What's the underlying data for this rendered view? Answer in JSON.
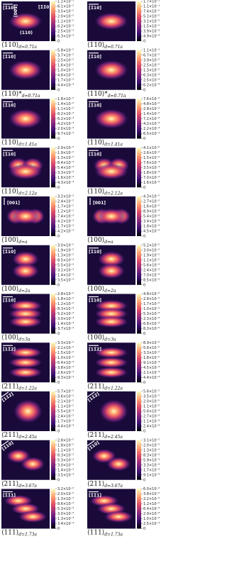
{
  "panels": [
    {
      "direction": "[1̄10]",
      "extra_labels": [
        "[001]",
        "[1̄1̄0]",
        "(110)"
      ],
      "caption": "⟨110⟩",
      "subscript": "d=0.71a",
      "ticks": [
        "1.1×10⁻¹",
        "6.1×10⁻²",
        "3.5×10⁻²",
        "2.0×10⁻²",
        "1.1×10⁻²",
        "6.2×10⁻³",
        "2.5×10⁻³",
        "6.3×10⁻⁴",
        "0"
      ]
    },
    {
      "direction": "[1̄10]",
      "caption": "⟨110⟩",
      "subscript": "d=0.71a",
      "ticks": [
        "1.7×10⁻¹",
        "1.1×10⁻¹",
        "7.4×10⁻²",
        "5.1×10⁻²",
        "3.1×10⁻²",
        "1.5×10⁻²",
        "3.9×10⁻³",
        "4.9×10⁻⁴",
        "0"
      ]
    },
    {
      "direction": "[1̄10]",
      "caption": "⟨110⟩*",
      "subscript": "d=0.71a",
      "ticks": [
        "5.8×10⁻²",
        "3.7×10⁻²",
        "2.5×10⁻²",
        "1.6×10⁻²",
        "1.0×10⁻²",
        "4.6×10⁻³",
        "1.7×10⁻³",
        "4.4×10⁻⁴",
        "0"
      ]
    },
    {
      "direction": "[1̄10]",
      "caption": "⟨110⟩*",
      "subscript": "d=0.71a",
      "ticks": [
        "1.1×10⁻¹",
        "6.7×10⁻²",
        "3.9×10⁻²",
        "2.5×10⁻²",
        "1.3×10⁻²",
        "6.3×10⁻³",
        "2.5×10⁻³",
        "6.2×10⁻⁴",
        "0"
      ]
    },
    {
      "direction": "[1̄10]",
      "caption": "⟨110⟩",
      "subscript": "d=1.41a",
      "ticks": [
        "1.8×10⁻²",
        "1.4×10⁻²",
        "1.1×10⁻²",
        "8.2×10⁻³",
        "6.2×10⁻³",
        "4.2×10⁻³",
        "2.0×10⁻³",
        "9.7×10⁻⁴",
        "0"
      ]
    },
    {
      "direction": "[1̄10]",
      "caption": "⟨110⟩",
      "subscript": "d=1.41a",
      "ticks": [
        "7.6×10⁻²",
        "4.8×10⁻²",
        "2.8×10⁻²",
        "1.4×10⁻²",
        "7.2×10⁻³",
        "4.2×10⁻³",
        "2.2×10⁻³",
        "6.5×10⁻⁴",
        "0"
      ]
    },
    {
      "direction": "[1̄10]",
      "caption": "⟨110⟩",
      "subscript": "d=2.12a",
      "ticks": [
        "2.9×10⁻²",
        "1.9×10⁻²",
        "1.3×10⁻²",
        "8.4×10⁻³",
        "5.4×10⁻³",
        "3.3×10⁻³",
        "1.6×10⁻³",
        "4.3×10⁻⁴",
        "0"
      ]
    },
    {
      "direction": "[1̄10]",
      "caption": "⟨110⟩",
      "subscript": "d=2.12a",
      "ticks": [
        "4.1×10⁻²",
        "2.6×10⁻²",
        "1.5×10⁻²",
        "7.6×10⁻³",
        "3.5×10⁻³",
        "1.8×10⁻³",
        "7.0×10⁻⁴",
        "1.6×10⁻⁴",
        "0"
      ]
    },
    {
      "direction": "[001]",
      "caption": "⟨100⟩",
      "subscript": "d=a",
      "ticks": [
        "3.2×10⁻²",
        "2.4×10⁻²",
        "1.7×10⁻²",
        "1.2×10⁻²",
        "7.4×10⁻³",
        "4.2×10⁻³",
        "1.7×10⁻³",
        "4.2×10⁻⁴",
        "0"
      ]
    },
    {
      "direction": "[001]",
      "caption": "⟨100⟩",
      "subscript": "d=a",
      "ticks": [
        "4.3×10⁻²",
        "2.7×10⁻²",
        "1.6×10⁻²",
        "8.9×10⁻³",
        "5.4×10⁻³",
        "3.4×10⁻³",
        "1.8×10⁻³",
        "4.5×10⁻⁴",
        "0"
      ]
    },
    {
      "direction": "[1̄10]",
      "caption": "⟨100⟩",
      "subscript": "d=2a",
      "ticks": [
        "3.0×10⁻²",
        "1.9×10⁻²",
        "1.3×10⁻²",
        "8.5×10⁻³",
        "5.5×10⁻³",
        "3.1×10⁻³",
        "1.4×10⁻³",
        "3.5×10⁻⁴",
        "0"
      ]
    },
    {
      "direction": "[1̄10]",
      "caption": "⟨100⟩",
      "subscript": "d=2a",
      "ticks": [
        "5.2×10⁻²",
        "3.0×10⁻²",
        "1.9×10⁻²",
        "1.1×10⁻²",
        "5.6×10⁻³",
        "2.4×10⁻³",
        "7.0×10⁻⁴",
        "8.5×10⁻⁵",
        "0"
      ]
    },
    {
      "direction": "[1̄10]",
      "caption": "⟨100⟩",
      "subscript": "d=3a",
      "ticks": [
        "2.8×10⁻²",
        "1.8×10⁻²",
        "1.2×10⁻²",
        "8.3×10⁻³",
        "5.2×10⁻³",
        "3.0×10⁻³",
        "1.4×10⁻³",
        "3.7×10⁻⁴",
        "0"
      ]
    },
    {
      "direction": "[1̄10]",
      "caption": "⟨100⟩",
      "subscript": "d=3a",
      "ticks": [
        "4.8×10⁻²",
        "2.8×10⁻²",
        "1.7×10⁻²",
        "1.0×10⁻²",
        "5.3×10⁻³",
        "2.3×10⁻³",
        "6.6×10⁻⁴",
        "8.3×10⁻⁵",
        "0"
      ]
    },
    {
      "direction": "[11̄2]",
      "caption": "⟨211⟩",
      "subscript": "d=1.22a",
      "ticks": [
        "3.3×10⁻²",
        "2.1×10⁻²",
        "1.5×10⁻²",
        "1.0×10⁻²",
        "6.4×10⁻³",
        "3.8×10⁻³",
        "2.6×10⁻³",
        "9.3×10⁻⁴",
        "0"
      ]
    },
    {
      "direction": "[11̄2]",
      "caption": "⟨211⟩",
      "subscript": "d=1.22a",
      "ticks": [
        "8.9×10⁻²",
        "5.6×10⁻²",
        "3.3×10⁻²",
        "1.8×10⁻²",
        "9.1×10⁻³",
        "4.5×10⁻³",
        "2.1×10⁻³",
        "4.4×10⁻⁴",
        "0"
      ]
    },
    {
      "direction": "[11̄2]",
      "caption": "⟨211⟩",
      "subscript": "d=2.45a",
      "ticks": [
        "5.7×10⁻²",
        "3.6×10⁻²",
        "2.1×10⁻²",
        "1.1×10⁻²",
        "5.5×10⁻³",
        "2.4×10⁻³",
        "1.7×10⁻³",
        "4.4×10⁻⁴",
        "0"
      ]
    },
    {
      "direction": "[11̄2]",
      "caption": "⟨211⟩",
      "subscript": "d=2.45a",
      "ticks": [
        "5.6×10⁻²",
        "3.5×10⁻²",
        "2.0×10⁻²",
        "1.1×10⁻²",
        "5.6×10⁻³",
        "2.7×10⁻³",
        "1.1×10⁻³",
        "2.4×10⁻⁴",
        "0"
      ]
    },
    {
      "direction": "[1̄10]",
      "caption": "⟨211⟩",
      "subscript": "d=3.67a",
      "ticks": [
        "2.8×10⁻²",
        "1.8×10⁻²",
        "1.1×10⁻²",
        "8.3×10⁻³",
        "5.3×10⁻³",
        "3.0×10⁻³",
        "1.4×10⁻³",
        "3.5×10⁻⁴",
        "0"
      ]
    },
    {
      "direction": "[1̄10]",
      "caption": "⟨211⟩",
      "subscript": "d=3.67a",
      "ticks": [
        "3.1×10⁻²",
        "2.0×10⁻²",
        "1.3×10⁻²",
        "8.3×10⁻³",
        "5.9×10⁻³",
        "3.3×10⁻³",
        "1.7×10⁻³",
        "9.1×10⁻⁴",
        "0"
      ]
    },
    {
      "direction": "[1̄1̄1]",
      "caption": "⟨111⟩",
      "subscript": "d=1.73a",
      "ticks": [
        "3.2×10⁻²",
        "2.0×10⁻²",
        "1.3×10⁻²",
        "8.6×10⁻³",
        "5.3×10⁻³",
        "3.0×10⁻³",
        "1.3×10⁻³",
        "3.4×10⁻⁴",
        "0"
      ]
    },
    {
      "direction": "[1̄1̄1]",
      "caption": "⟨111⟩",
      "subscript": "d=1.73a",
      "ticks": [
        "6.0×10⁻²",
        "3.8×10⁻²",
        "2.2×10⁻²",
        "1.2×10⁻²",
        "6.4×10⁻³",
        "2.9×10⁻³",
        "1.0×10⁻³",
        "2.5×10⁻⁴",
        "0"
      ]
    }
  ]
}
